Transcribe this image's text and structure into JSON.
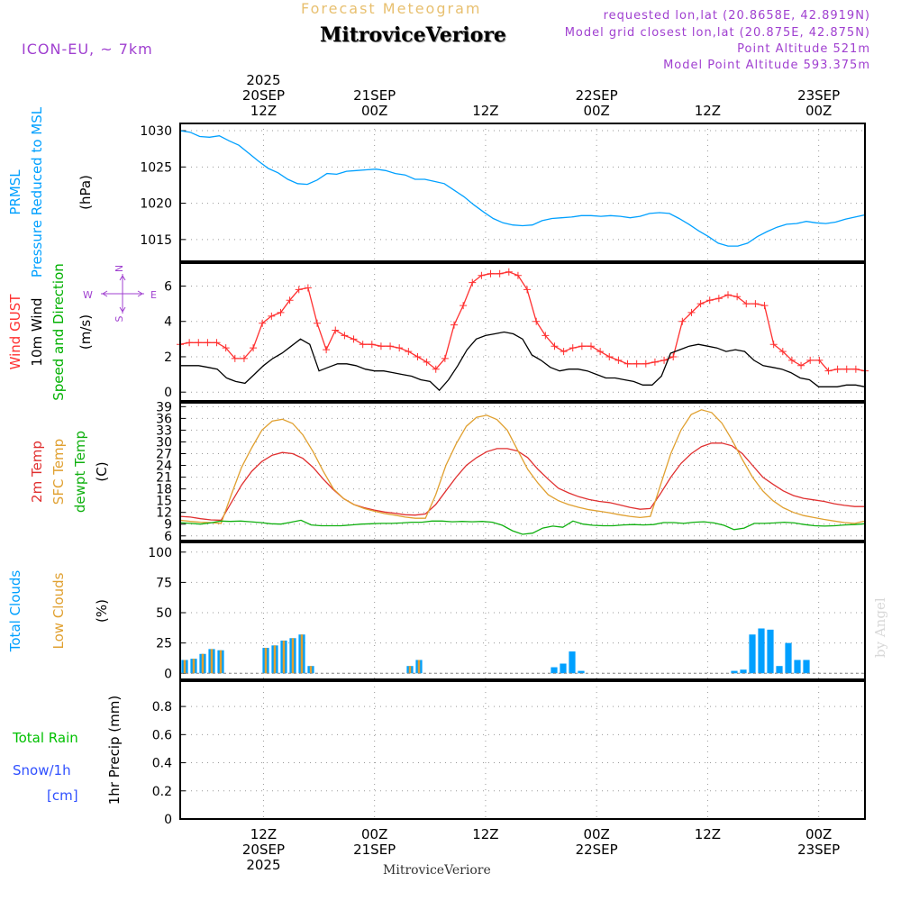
{
  "header": {
    "product_title": "Forecast Meteogram",
    "station_name": "MitroviceVeriore",
    "model": "ICON-EU, ~ 7km",
    "requested": "requested lon,lat (20.8658E, 42.8919N)",
    "closest": "Model grid closest lon,lat (20.875E, 42.875N)",
    "point_altitude": "Point Altitude 521m",
    "model_altitude": "Model Point Altitude 593.375m"
  },
  "footer": {
    "station_name": "MitroviceVeriore",
    "credit": "by Angel"
  },
  "colors": {
    "prmsl": "#00a0ff",
    "gust": "#ff3030",
    "wind": "#000000",
    "direction": "#00b000",
    "t2m": "#e03030",
    "sfc": "#e0a030",
    "dewpt": "#10b010",
    "total_clouds": "#00a0ff",
    "low_clouds": "#e0a030",
    "rain": "#00c000",
    "snow": "#3050ff",
    "header_purple": "#a040d0",
    "header_orange": "#e8c070"
  },
  "time_axis": {
    "hours_span": 74,
    "ticks": [
      {
        "hour": 9,
        "top": [
          "2025",
          "20SEP",
          "12Z"
        ],
        "bottom": [
          "12Z",
          "20SEP",
          "2025"
        ]
      },
      {
        "hour": 21,
        "top": [
          "21SEP",
          "00Z"
        ],
        "bottom": [
          "00Z",
          "21SEP"
        ]
      },
      {
        "hour": 33,
        "top": [
          "12Z"
        ],
        "bottom": [
          "12Z"
        ]
      },
      {
        "hour": 45,
        "top": [
          "22SEP",
          "00Z"
        ],
        "bottom": [
          "00Z",
          "22SEP"
        ]
      },
      {
        "hour": 57,
        "top": [
          "12Z"
        ],
        "bottom": [
          "12Z"
        ]
      },
      {
        "hour": 69,
        "top": [
          "23SEP",
          "00Z"
        ],
        "bottom": [
          "00Z",
          "23SEP"
        ]
      }
    ]
  },
  "chart_data": [
    {
      "type": "line",
      "id": "pressure",
      "title_lines": [
        "PRMSL",
        "Pressure Reduced to MSL"
      ],
      "ylabel": "(hPa)",
      "ylim": [
        1012,
        1031
      ],
      "yticks": [
        1015,
        1020,
        1025,
        1030
      ],
      "series": [
        {
          "name": "PRMSL",
          "values": [
            1030,
            1029.8,
            1029.2,
            1029.1,
            1029.3,
            1028.6,
            1028.0,
            1026.9,
            1025.8,
            1024.8,
            1024.2,
            1023.3,
            1022.7,
            1022.6,
            1023.2,
            1024.1,
            1024.0,
            1024.4,
            1024.5,
            1024.6,
            1024.7,
            1024.5,
            1024.1,
            1023.9,
            1023.3,
            1023.3,
            1023.0,
            1022.7,
            1021.8,
            1020.9,
            1019.8,
            1018.8,
            1017.9,
            1017.3,
            1017.0,
            1016.9,
            1017.0,
            1017.6,
            1017.9,
            1018.0,
            1018.1,
            1018.3,
            1018.3,
            1018.2,
            1018.3,
            1018.2,
            1018.0,
            1018.2,
            1018.6,
            1018.7,
            1018.6,
            1017.9,
            1017.1,
            1016.2,
            1015.4,
            1014.5,
            1014.1,
            1014.1,
            1014.5,
            1015.4,
            1016.1,
            1016.7,
            1017.1,
            1017.2,
            1017.5,
            1017.3,
            1017.2,
            1017.4,
            1017.8,
            1018.1,
            1018.4
          ]
        }
      ]
    },
    {
      "type": "line",
      "id": "wind",
      "title_lines": [
        "Wind GUST",
        "10m Wind",
        "Speed and Direction"
      ],
      "ylabel": "(m/s)",
      "compass": {
        "n": "N",
        "s": "S",
        "e": "E",
        "w": "W"
      },
      "ylim": [
        -0.5,
        7.3
      ],
      "yticks": [
        0,
        2,
        4,
        6
      ],
      "series": [
        {
          "name": "Wind GUST",
          "values": [
            2.7,
            2.8,
            2.8,
            2.8,
            2.8,
            2.5,
            1.9,
            1.9,
            2.5,
            3.9,
            4.3,
            4.5,
            5.2,
            5.8,
            5.9,
            3.9,
            2.4,
            3.5,
            3.2,
            3.0,
            2.7,
            2.7,
            2.6,
            2.6,
            2.5,
            2.3,
            2.0,
            1.7,
            1.3,
            1.9,
            3.8,
            4.9,
            6.2,
            6.6,
            6.7,
            6.7,
            6.8,
            6.6,
            5.8,
            4.0,
            3.2,
            2.6,
            2.3,
            2.5,
            2.6,
            2.6,
            2.3,
            2.0,
            1.8,
            1.6,
            1.6,
            1.6,
            1.7,
            1.8,
            2.0,
            4.0,
            4.5,
            5.0,
            5.2,
            5.3,
            5.5,
            5.4,
            5.0,
            5.0,
            4.9,
            2.7,
            2.3,
            1.8,
            1.5,
            1.8,
            1.8,
            1.2,
            1.3,
            1.3,
            1.3,
            1.2
          ]
        },
        {
          "name": "10m Wind",
          "values": [
            1.5,
            1.5,
            1.5,
            1.4,
            1.3,
            0.8,
            0.6,
            0.5,
            1.0,
            1.5,
            1.9,
            2.2,
            2.6,
            3.0,
            2.7,
            1.2,
            1.4,
            1.6,
            1.6,
            1.5,
            1.3,
            1.2,
            1.2,
            1.1,
            1.0,
            0.9,
            0.7,
            0.6,
            0.1,
            0.7,
            1.5,
            2.4,
            3.0,
            3.2,
            3.3,
            3.4,
            3.3,
            3.0,
            2.1,
            1.8,
            1.4,
            1.2,
            1.3,
            1.3,
            1.2,
            1.0,
            0.8,
            0.8,
            0.7,
            0.6,
            0.4,
            0.4,
            0.9,
            2.2,
            2.4,
            2.6,
            2.7,
            2.6,
            2.5,
            2.3,
            2.4,
            2.3,
            1.8,
            1.5,
            1.4,
            1.3,
            1.1,
            0.8,
            0.7,
            0.3,
            0.3,
            0.3,
            0.4,
            0.4,
            0.3
          ]
        }
      ]
    },
    {
      "type": "line",
      "id": "temperature",
      "title_lines": [
        "2m Temp",
        "SFC Temp",
        "dewpt Temp"
      ],
      "ylabel": "(C)",
      "ylim": [
        4.8,
        40
      ],
      "yticks": [
        6,
        9,
        12,
        15,
        18,
        21,
        24,
        27,
        30,
        33,
        36,
        39
      ],
      "series": [
        {
          "name": "2m Temp",
          "values": [
            11,
            10.8,
            10.4,
            10.1,
            10.0,
            14.5,
            19.0,
            22.5,
            25.0,
            26.6,
            27.3,
            27.0,
            25.8,
            23.5,
            20.5,
            17.8,
            15.5,
            14.0,
            13.2,
            12.6,
            12.1,
            11.8,
            11.4,
            11.3,
            11.6,
            14.0,
            17.5,
            21.0,
            24.0,
            26.0,
            27.5,
            28.3,
            28.3,
            27.7,
            26.0,
            23.0,
            20.5,
            18.2,
            17.0,
            16.0,
            15.3,
            14.8,
            14.5,
            13.9,
            13.3,
            12.8,
            13.0,
            16.8,
            21.0,
            24.5,
            27.0,
            28.8,
            29.7,
            29.7,
            29.0,
            27.0,
            24.0,
            21.0,
            19.2,
            17.5,
            16.3,
            15.6,
            15.2,
            14.8,
            14.2,
            13.8,
            13.5,
            13.5
          ]
        },
        {
          "name": "SFC Temp",
          "values": [
            10,
            9.7,
            9.5,
            9.4,
            9.2,
            16.5,
            23.5,
            28.5,
            33.0,
            35.3,
            35.8,
            34.7,
            31.8,
            27.5,
            22.5,
            18.0,
            15.5,
            14.0,
            13.0,
            12.3,
            11.7,
            11.3,
            10.8,
            10.5,
            10.5,
            16.5,
            24.0,
            29.5,
            34.0,
            36.3,
            36.8,
            35.7,
            33.0,
            28.0,
            23.0,
            19.5,
            16.5,
            15.0,
            14.0,
            13.3,
            12.7,
            12.3,
            11.9,
            11.4,
            11.0,
            10.7,
            11.0,
            19.0,
            27.0,
            33.0,
            37.0,
            38.2,
            37.5,
            34.8,
            30.5,
            25.5,
            21.0,
            17.5,
            15.0,
            13.2,
            12.0,
            11.2,
            10.7,
            10.2,
            9.8,
            9.4,
            9.2,
            9.8
          ]
        },
        {
          "name": "dewpt Temp",
          "values": [
            9.4,
            9.2,
            9.0,
            9.3,
            9.8,
            9.7,
            9.8,
            9.6,
            9.4,
            9.1,
            9.0,
            9.5,
            10.0,
            8.8,
            8.6,
            8.6,
            8.6,
            8.8,
            9.0,
            9.1,
            9.2,
            9.2,
            9.3,
            9.5,
            9.5,
            9.8,
            9.8,
            9.6,
            9.7,
            9.6,
            9.7,
            9.5,
            8.7,
            7.3,
            6.4,
            6.7,
            8.0,
            8.5,
            8.2,
            9.8,
            9.0,
            8.7,
            8.6,
            8.6,
            8.8,
            8.9,
            8.8,
            8.9,
            9.4,
            9.4,
            9.2,
            9.5,
            9.6,
            9.3,
            8.7,
            7.6,
            8.0,
            9.2,
            9.2,
            9.3,
            9.5,
            9.3,
            8.9,
            8.6,
            8.5,
            8.6,
            8.8,
            8.9,
            9.1
          ]
        }
      ]
    },
    {
      "type": "bar",
      "id": "clouds",
      "title_lines": [
        "Total Clouds",
        "Low Clouds"
      ],
      "ylabel": "(%)",
      "ylim": [
        -5,
        108
      ],
      "yticks": [
        0,
        25,
        50,
        75,
        100
      ],
      "series": [
        {
          "name": "Total Clouds",
          "values": [
            11,
            12,
            16,
            20,
            19,
            0,
            0,
            0,
            0,
            21,
            23,
            27,
            29,
            32,
            6,
            0,
            0,
            0,
            0,
            0,
            0,
            0,
            0,
            0,
            0,
            6,
            11,
            0,
            0,
            0,
            0,
            0,
            0,
            0,
            0,
            0,
            0,
            0,
            0,
            0,
            0,
            5,
            8,
            18,
            2,
            0,
            0,
            0,
            0,
            0,
            0,
            0,
            0,
            0,
            0,
            0,
            0,
            0,
            0,
            0,
            0,
            2,
            3,
            32,
            37,
            36,
            6,
            25,
            11,
            11,
            0,
            0,
            0,
            0,
            0,
            0
          ]
        },
        {
          "name": "Low Clouds",
          "values": [
            11,
            12,
            16,
            20,
            19,
            0,
            0,
            0,
            0,
            21,
            23,
            27,
            29,
            32,
            6,
            0,
            0,
            0,
            0,
            0,
            0,
            0,
            0,
            0,
            0,
            6,
            11,
            0,
            0,
            0,
            0,
            0,
            0,
            0,
            0,
            0,
            0,
            0,
            0,
            0,
            0,
            0,
            0,
            0,
            0,
            0,
            0,
            0,
            0,
            0,
            0,
            0,
            0,
            0,
            0,
            0,
            0,
            0,
            0,
            0,
            0,
            0,
            0,
            0,
            0,
            0,
            0,
            0,
            0,
            0,
            0,
            0,
            0,
            0,
            0,
            0
          ]
        }
      ]
    },
    {
      "type": "bar",
      "id": "precip",
      "title_lines": [
        "Total  Rain",
        "Snow/1h",
        "[cm]"
      ],
      "ylabel": "1hr Precip (mm)",
      "ylim": [
        0,
        0.98
      ],
      "yticks": [
        0,
        0.2,
        0.4,
        0.6,
        0.8
      ],
      "series": [
        {
          "name": "Total Rain",
          "values": [
            0,
            0,
            0,
            0,
            0,
            0,
            0,
            0,
            0,
            0,
            0,
            0,
            0,
            0,
            0,
            0,
            0,
            0,
            0,
            0,
            0,
            0,
            0,
            0,
            0,
            0,
            0,
            0,
            0,
            0,
            0,
            0,
            0,
            0,
            0,
            0,
            0,
            0,
            0,
            0,
            0,
            0,
            0,
            0,
            0,
            0,
            0,
            0,
            0,
            0,
            0,
            0,
            0,
            0,
            0,
            0,
            0,
            0,
            0,
            0,
            0,
            0,
            0,
            0,
            0,
            0,
            0,
            0,
            0,
            0,
            0,
            0,
            0,
            0,
            0
          ]
        },
        {
          "name": "Snow/1h",
          "values": [
            0,
            0,
            0,
            0,
            0,
            0,
            0,
            0,
            0,
            0,
            0,
            0,
            0,
            0,
            0,
            0,
            0,
            0,
            0,
            0,
            0,
            0,
            0,
            0,
            0,
            0,
            0,
            0,
            0,
            0,
            0,
            0,
            0,
            0,
            0,
            0,
            0,
            0,
            0,
            0,
            0,
            0,
            0,
            0,
            0,
            0,
            0,
            0,
            0,
            0,
            0,
            0,
            0,
            0,
            0,
            0,
            0,
            0,
            0,
            0,
            0,
            0,
            0,
            0,
            0,
            0,
            0,
            0,
            0,
            0,
            0,
            0,
            0,
            0,
            0
          ]
        }
      ]
    }
  ]
}
